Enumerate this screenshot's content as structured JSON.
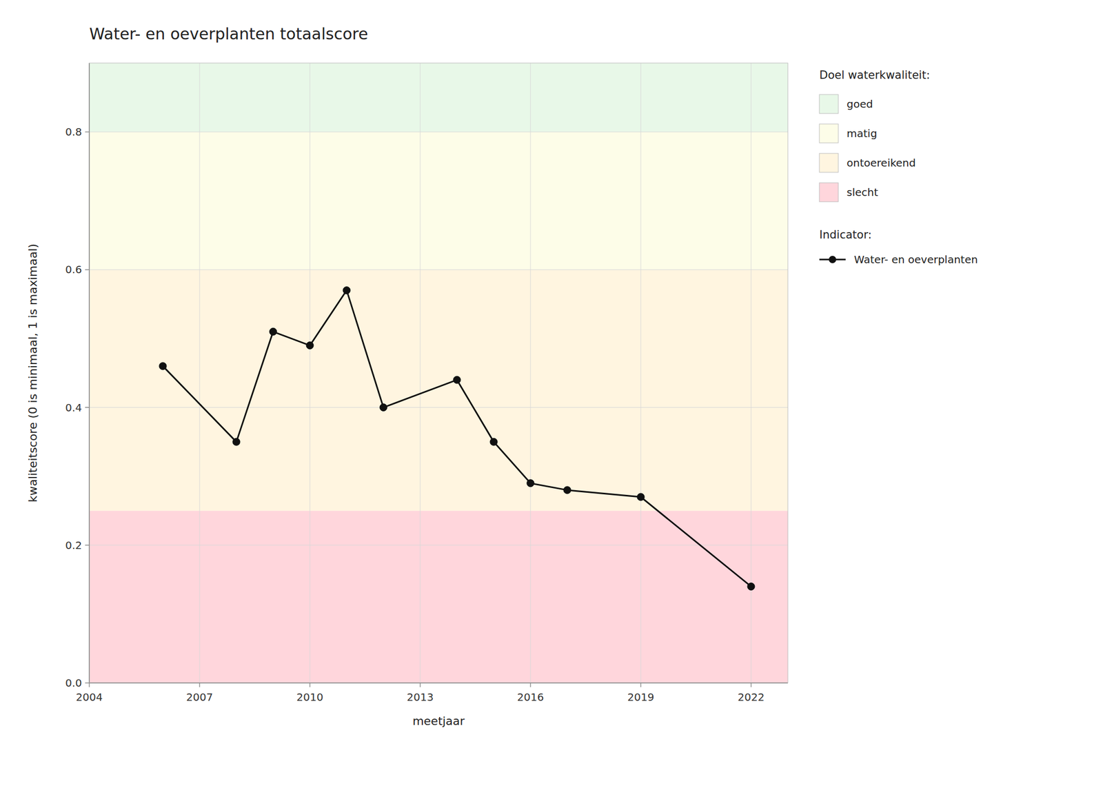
{
  "chart_data": {
    "type": "line",
    "title": "Water- en oeverplanten totaalscore",
    "x_label": "meetjaar",
    "y_label": "kwaliteitscore (0 is minimaal, 1 is maximaal)",
    "x": [
      2006,
      2008,
      2009,
      2010,
      2011,
      2012,
      2014,
      2015,
      2016,
      2017,
      2019,
      2022
    ],
    "series": [
      {
        "name": "Water- en oeverplanten",
        "color": "#111111",
        "marker": "circle",
        "line_style": "solid",
        "values": [
          0.46,
          0.35,
          0.51,
          0.49,
          0.57,
          0.4,
          0.44,
          0.35,
          0.29,
          0.28,
          0.27,
          0.14
        ]
      }
    ],
    "bands": [
      {
        "ymin": 0.0,
        "ymax": 0.25,
        "color": "#FFD6DC",
        "label": "slecht"
      },
      {
        "ymin": 0.25,
        "ymax": 0.6,
        "color": "#FFF5E0",
        "label": "ontoereikend"
      },
      {
        "ymin": 0.6,
        "ymax": 0.8,
        "color": "#FDFDE8",
        "label": "matig"
      },
      {
        "ymin": 0.8,
        "ymax": 0.9,
        "color": "#E8F8E8",
        "label": "goed"
      }
    ],
    "bands_title": "Doel waterkwaliteit:",
    "series_title": "Indicator:",
    "xlim": [
      2004,
      2023
    ],
    "xticks": [
      2004,
      2007,
      2010,
      2013,
      2016,
      2019,
      2022
    ],
    "ylim": [
      0.0,
      0.9
    ],
    "yticks": [
      {
        "value": 0.0,
        "label": "0.0"
      },
      0.2,
      0.4,
      0.6,
      0.8
    ],
    "grid": true,
    "legend": "right"
  }
}
